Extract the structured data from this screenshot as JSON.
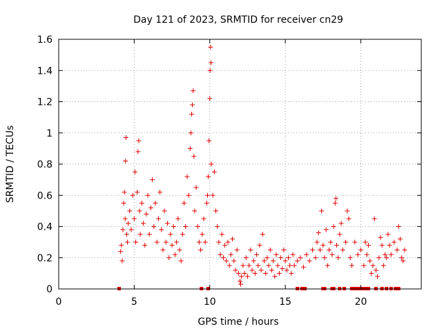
{
  "chart_data": {
    "type": "scatter",
    "title": "Day 121 of 2023, SRMTID for receiver cn29",
    "xlabel": "GPS time / hours",
    "ylabel": "SRMTID / TECUs",
    "xlim": [
      0,
      24
    ],
    "ylim": [
      0,
      1.6
    ],
    "xticks": [
      0,
      5,
      10,
      15,
      20
    ],
    "xtick_labels": [
      "0",
      "5",
      "10",
      "15",
      "20"
    ],
    "yticks": [
      0,
      0.2,
      0.4,
      0.6,
      0.8,
      1,
      1.2,
      1.4,
      1.6
    ],
    "ytick_labels": [
      "0",
      "0.2",
      "0.4",
      "0.6",
      "0.8",
      "1",
      "1.2",
      "1.4",
      "1.6"
    ],
    "grid": true,
    "marker": "+",
    "color": "#e00000",
    "series": [
      {
        "name": "SRMTID cn29",
        "points": [
          [
            4.1,
            0.24
          ],
          [
            4.15,
            0.28
          ],
          [
            4.2,
            0.18
          ],
          [
            4.25,
            0.38
          ],
          [
            4.3,
            0.55
          ],
          [
            4.35,
            0.62
          ],
          [
            4.4,
            0.45
          ],
          [
            4.42,
            0.82
          ],
          [
            4.45,
            0.97
          ],
          [
            4.5,
            0.35
          ],
          [
            4.55,
            0.3
          ],
          [
            4.6,
            0.42
          ],
          [
            4.7,
            0.5
          ],
          [
            4.8,
            0.38
          ],
          [
            4.9,
            0.6
          ],
          [
            5.0,
            0.45
          ],
          [
            5.05,
            0.75
          ],
          [
            5.1,
            0.3
          ],
          [
            5.2,
            0.62
          ],
          [
            5.25,
            0.88
          ],
          [
            5.3,
            0.95
          ],
          [
            5.35,
            0.5
          ],
          [
            5.4,
            0.35
          ],
          [
            5.5,
            0.55
          ],
          [
            5.6,
            0.42
          ],
          [
            5.7,
            0.28
          ],
          [
            5.8,
            0.48
          ],
          [
            5.9,
            0.6
          ],
          [
            6.0,
            0.35
          ],
          [
            6.1,
            0.52
          ],
          [
            6.2,
            0.7
          ],
          [
            6.3,
            0.4
          ],
          [
            6.4,
            0.55
          ],
          [
            6.5,
            0.3
          ],
          [
            6.6,
            0.45
          ],
          [
            6.7,
            0.62
          ],
          [
            6.8,
            0.38
          ],
          [
            6.9,
            0.25
          ],
          [
            7.0,
            0.5
          ],
          [
            7.1,
            0.3
          ],
          [
            7.2,
            0.42
          ],
          [
            7.3,
            0.2
          ],
          [
            7.4,
            0.35
          ],
          [
            7.5,
            0.28
          ],
          [
            7.6,
            0.4
          ],
          [
            7.7,
            0.22
          ],
          [
            7.8,
            0.3
          ],
          [
            7.9,
            0.45
          ],
          [
            8.0,
            0.25
          ],
          [
            8.1,
            0.18
          ],
          [
            8.2,
            0.35
          ],
          [
            8.3,
            0.55
          ],
          [
            8.4,
            0.4
          ],
          [
            8.5,
            0.72
          ],
          [
            8.6,
            0.6
          ],
          [
            8.7,
            0.9
          ],
          [
            8.75,
            1.0
          ],
          [
            8.8,
            1.12
          ],
          [
            8.85,
            1.18
          ],
          [
            8.9,
            1.27
          ],
          [
            8.95,
            0.85
          ],
          [
            9.0,
            0.5
          ],
          [
            9.1,
            0.65
          ],
          [
            9.2,
            0.4
          ],
          [
            9.3,
            0.3
          ],
          [
            9.4,
            0.25
          ],
          [
            9.5,
            0.35
          ],
          [
            9.6,
            0.45
          ],
          [
            9.7,
            0.3
          ],
          [
            9.8,
            0.55
          ],
          [
            9.85,
            0.6
          ],
          [
            9.9,
            0.72
          ],
          [
            9.95,
            0.95
          ],
          [
            10.0,
            1.22
          ],
          [
            10.02,
            1.4
          ],
          [
            10.05,
            1.55
          ],
          [
            10.08,
            1.45
          ],
          [
            10.1,
            0.8
          ],
          [
            10.2,
            0.6
          ],
          [
            10.3,
            0.75
          ],
          [
            10.4,
            0.5
          ],
          [
            10.5,
            0.4
          ],
          [
            10.6,
            0.3
          ],
          [
            10.7,
            0.22
          ],
          [
            10.8,
            0.35
          ],
          [
            10.9,
            0.2
          ],
          [
            11.0,
            0.28
          ],
          [
            11.1,
            0.18
          ],
          [
            11.2,
            0.3
          ],
          [
            11.3,
            0.15
          ],
          [
            11.4,
            0.22
          ],
          [
            11.5,
            0.32
          ],
          [
            11.6,
            0.18
          ],
          [
            11.7,
            0.12
          ],
          [
            11.8,
            0.25
          ],
          [
            11.9,
            0.1
          ],
          [
            12.0,
            0.05
          ],
          [
            12.05,
            0.03
          ],
          [
            12.1,
            0.08
          ],
          [
            12.2,
            0.15
          ],
          [
            12.3,
            0.1
          ],
          [
            12.4,
            0.2
          ],
          [
            12.5,
            0.08
          ],
          [
            12.6,
            0.15
          ],
          [
            12.7,
            0.25
          ],
          [
            12.8,
            0.12
          ],
          [
            12.9,
            0.18
          ],
          [
            13.0,
            0.1
          ],
          [
            13.1,
            0.22
          ],
          [
            13.2,
            0.15
          ],
          [
            13.3,
            0.28
          ],
          [
            13.4,
            0.12
          ],
          [
            13.5,
            0.35
          ],
          [
            13.6,
            0.18
          ],
          [
            13.7,
            0.1
          ],
          [
            13.8,
            0.2
          ],
          [
            13.9,
            0.15
          ],
          [
            14.0,
            0.25
          ],
          [
            14.1,
            0.12
          ],
          [
            14.2,
            0.18
          ],
          [
            14.3,
            0.08
          ],
          [
            14.4,
            0.22
          ],
          [
            14.5,
            0.15
          ],
          [
            14.6,
            0.1
          ],
          [
            14.7,
            0.2
          ],
          [
            14.8,
            0.13
          ],
          [
            14.9,
            0.25
          ],
          [
            15.0,
            0.18
          ],
          [
            15.1,
            0.12
          ],
          [
            15.2,
            0.2
          ],
          [
            15.3,
            0.15
          ],
          [
            15.4,
            0.1
          ],
          [
            15.5,
            0.22
          ],
          [
            15.6,
            0.15
          ],
          [
            15.8,
            0.18
          ],
          [
            16.0,
            0.2
          ],
          [
            16.2,
            0.14
          ],
          [
            16.4,
            0.22
          ],
          [
            16.6,
            0.18
          ],
          [
            16.8,
            0.25
          ],
          [
            17.0,
            0.2
          ],
          [
            17.1,
            0.3
          ],
          [
            17.2,
            0.36
          ],
          [
            17.3,
            0.25
          ],
          [
            17.4,
            0.5
          ],
          [
            17.5,
            0.28
          ],
          [
            17.6,
            0.2
          ],
          [
            17.7,
            0.38
          ],
          [
            17.8,
            0.15
          ],
          [
            17.9,
            0.25
          ],
          [
            18.0,
            0.3
          ],
          [
            18.1,
            0.22
          ],
          [
            18.2,
            0.4
          ],
          [
            18.3,
            0.55
          ],
          [
            18.35,
            0.58
          ],
          [
            18.4,
            0.28
          ],
          [
            18.5,
            0.2
          ],
          [
            18.6,
            0.35
          ],
          [
            18.7,
            0.42
          ],
          [
            18.8,
            0.25
          ],
          [
            19.0,
            0.3
          ],
          [
            19.1,
            0.5
          ],
          [
            19.2,
            0.45
          ],
          [
            19.3,
            0.2
          ],
          [
            19.4,
            0.15
          ],
          [
            19.6,
            0.3
          ],
          [
            19.8,
            0.22
          ],
          [
            20.0,
            0.25
          ],
          [
            20.2,
            0.15
          ],
          [
            20.3,
            0.3
          ],
          [
            20.4,
            0.22
          ],
          [
            20.5,
            0.28
          ],
          [
            20.6,
            0.18
          ],
          [
            20.7,
            0.1
          ],
          [
            20.8,
            0.15
          ],
          [
            20.9,
            0.45
          ],
          [
            21.0,
            0.12
          ],
          [
            21.1,
            0.08
          ],
          [
            21.2,
            0.2
          ],
          [
            21.3,
            0.33
          ],
          [
            21.4,
            0.28
          ],
          [
            21.5,
            0.15
          ],
          [
            21.6,
            0.22
          ],
          [
            21.7,
            0.2
          ],
          [
            21.8,
            0.35
          ],
          [
            21.9,
            0.28
          ],
          [
            22.0,
            0.22
          ],
          [
            22.2,
            0.3
          ],
          [
            22.4,
            0.25
          ],
          [
            22.5,
            0.4
          ],
          [
            22.6,
            0.32
          ],
          [
            22.7,
            0.2
          ],
          [
            22.8,
            0.18
          ],
          [
            22.9,
            0.25
          ]
        ]
      }
    ],
    "zero_points": [
      4.0,
      9.45,
      9.9,
      15.8,
      16.1,
      16.3,
      17.5,
      17.6,
      18.1,
      18.2,
      18.6,
      18.9,
      19.4,
      19.6,
      19.8,
      19.9,
      20.0,
      20.1,
      20.3,
      20.5,
      21.0,
      21.4,
      21.7,
      22.0,
      22.3,
      22.5
    ]
  }
}
